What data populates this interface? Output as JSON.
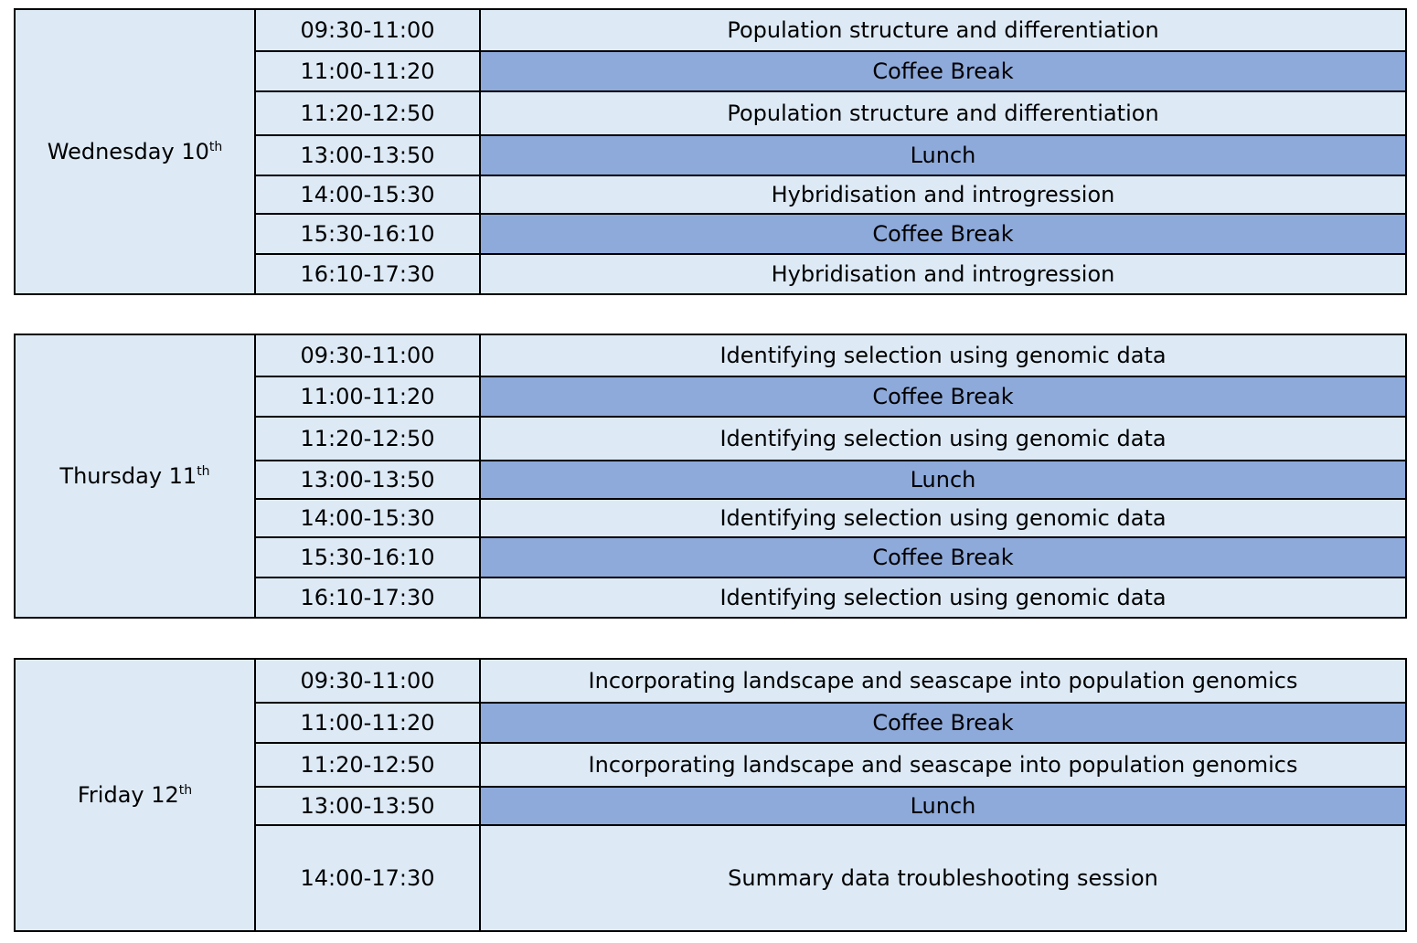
{
  "days": [
    {
      "day": "Wednesday 10",
      "suffix": "th",
      "sessions": [
        {
          "time": "09:30-11:00",
          "activity": "Population structure and differentiation",
          "break": false
        },
        {
          "time": "11:00-11:20",
          "activity": "Coffee Break",
          "break": true
        },
        {
          "time": "11:20-12:50",
          "activity": "Population structure and differentiation",
          "break": false
        },
        {
          "time": "13:00-13:50",
          "activity": "Lunch",
          "break": true
        },
        {
          "time": "14:00-15:30",
          "activity": "Hybridisation and introgression",
          "break": false
        },
        {
          "time": "15:30-16:10",
          "activity": "Coffee Break",
          "break": true
        },
        {
          "time": "16:10-17:30",
          "activity": "Hybridisation and introgression",
          "break": false
        }
      ]
    },
    {
      "day": "Thursday 11",
      "suffix": "th",
      "sessions": [
        {
          "time": "09:30-11:00",
          "activity": "Identifying selection using genomic data",
          "break": false
        },
        {
          "time": "11:00-11:20",
          "activity": "Coffee Break",
          "break": true
        },
        {
          "time": "11:20-12:50",
          "activity": "Identifying selection using genomic data",
          "break": false
        },
        {
          "time": "13:00-13:50",
          "activity": "Lunch",
          "break": true
        },
        {
          "time": "14:00-15:30",
          "activity": "Identifying selection using genomic data",
          "break": false
        },
        {
          "time": "15:30-16:10",
          "activity": "Coffee Break",
          "break": true
        },
        {
          "time": "16:10-17:30",
          "activity": "Identifying selection using genomic data",
          "break": false
        }
      ]
    },
    {
      "day": "Friday 12",
      "suffix": "th",
      "sessions": [
        {
          "time": "09:30-11:00",
          "activity": "Incorporating landscape and seascape into population genomics",
          "break": false
        },
        {
          "time": "11:00-11:20",
          "activity": "Coffee Break",
          "break": true
        },
        {
          "time": "11:20-12:50",
          "activity": "Incorporating landscape and seascape into population genomics",
          "break": false
        },
        {
          "time": "13:00-13:50",
          "activity": "Lunch",
          "break": true
        },
        {
          "time": "14:00-17:30",
          "activity": "Summary data troubleshooting session",
          "break": false
        }
      ]
    }
  ]
}
